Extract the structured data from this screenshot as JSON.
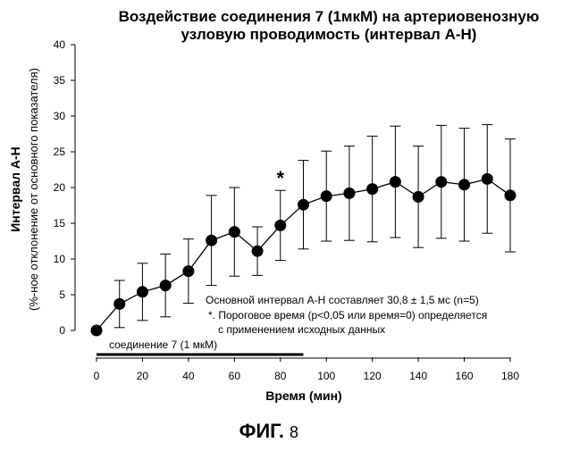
{
  "figure": {
    "title_line1": "Воздействие соединения 7 (1мкМ) на артериовенозную",
    "title_line2": "узловую проводимость (интервал А-Н)",
    "caption_prefix": "ФИГ.",
    "caption_number": "8"
  },
  "notes": {
    "baseline": "Основной интервал А-Н составляет 30,8 ± 1,5 мс (n=5)",
    "footnote_line1": "*. Пороговое время (p<0,05 или время=0) определяется",
    "footnote_line2": "с применением исходных данных",
    "treatment_bar_label": "соединение 7 (1 мкМ)"
  },
  "chart_data": {
    "type": "line",
    "title": "Воздействие соединения 7 (1мкМ) на артериовенозную узловую проводимость (интервал А-Н)",
    "xlabel": "Время (мин)",
    "ylabel": "Интервал А-Н",
    "ylabel2": "(%-ное отклонение от основного показателя)",
    "xlim": [
      0,
      180
    ],
    "ylim": [
      0,
      40
    ],
    "xticks": [
      0,
      20,
      40,
      60,
      80,
      100,
      120,
      140,
      160,
      180
    ],
    "yticks": [
      0,
      5,
      10,
      15,
      20,
      25,
      30,
      35,
      40
    ],
    "grid": false,
    "legend": "none",
    "marker": "filled-circle",
    "series": [
      {
        "x": [
          0,
          10,
          20,
          30,
          40,
          50,
          60,
          70,
          80,
          90,
          100,
          110,
          120,
          130,
          140,
          150,
          160,
          170,
          180
        ],
        "y": [
          0,
          3.7,
          5.4,
          6.3,
          8.3,
          12.6,
          13.8,
          11.1,
          14.7,
          17.6,
          18.8,
          19.2,
          19.8,
          20.8,
          18.7,
          20.8,
          20.4,
          21.2,
          18.9
        ],
        "error": [
          0,
          3.3,
          4.0,
          4.4,
          4.5,
          6.3,
          6.2,
          3.4,
          4.9,
          6.2,
          6.3,
          6.6,
          7.4,
          7.8,
          7.1,
          7.9,
          7.9,
          7.6,
          7.9
        ]
      }
    ],
    "annotations": [
      {
        "text": "*",
        "x": 80
      }
    ],
    "treatment_period": [
      0,
      90
    ]
  }
}
